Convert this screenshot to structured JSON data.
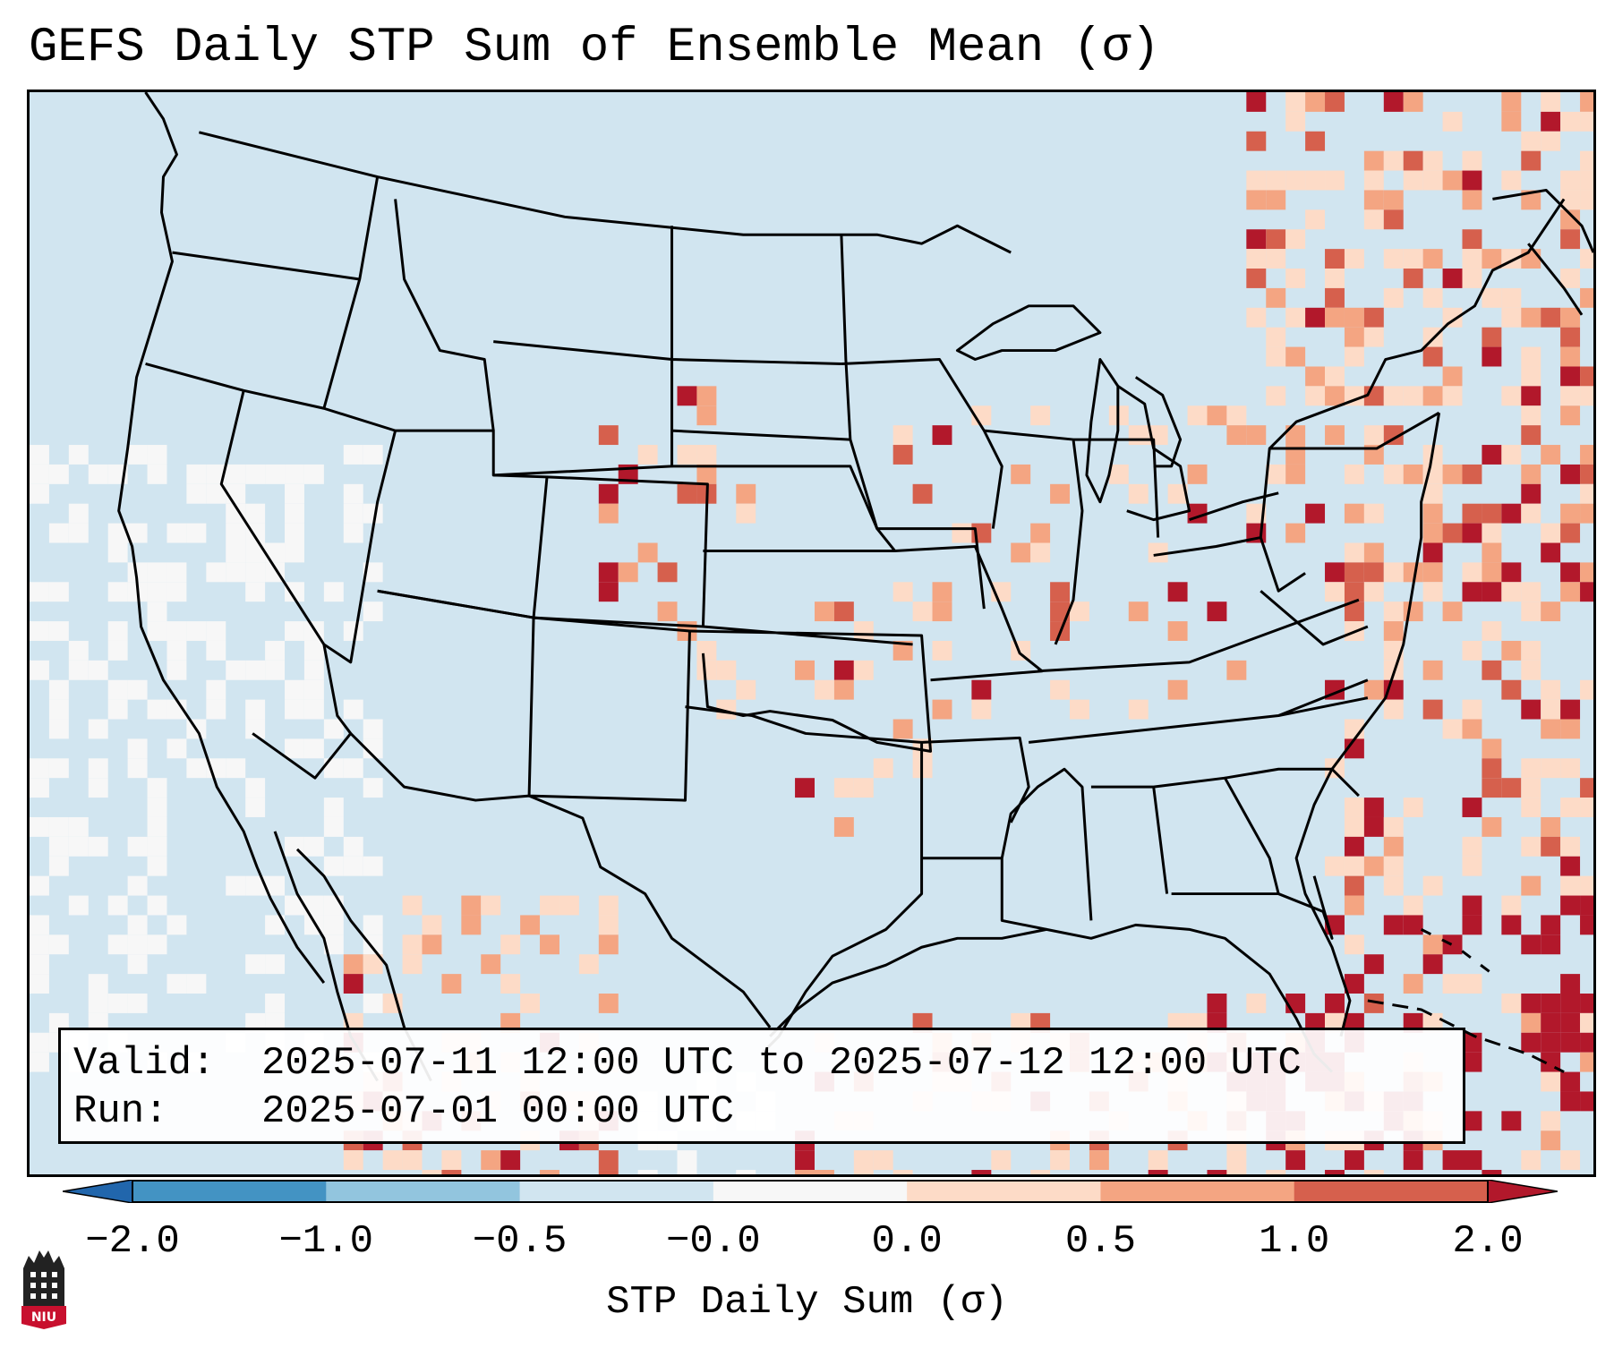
{
  "title": "GEFS Daily STP Sum of Ensemble Mean (σ)",
  "info": {
    "valid_label": "Valid:",
    "valid_value": "2025-07-11 12:00 UTC to 2025-07-12 12:00 UTC",
    "run_label": "Run:",
    "run_value": "2025-07-01 00:00 UTC"
  },
  "colorbar": {
    "label": "STP Daily Sum (σ)",
    "ticks": [
      "−2.0",
      "−1.0",
      "−0.5",
      "−0.0",
      "0.0",
      "0.5",
      "1.0",
      "2.0"
    ],
    "bin_colors": [
      "#4393c3",
      "#92c5de",
      "#d1e5f0",
      "#f7f7f7",
      "#fddbc7",
      "#f4a582",
      "#d6604d"
    ],
    "under_color": "#2166ac",
    "over_color": "#b2182b"
  },
  "logo": {
    "text": "NIU"
  },
  "colors": {
    "ocean_bg": "#d1e5f0",
    "border": "#000000"
  }
}
